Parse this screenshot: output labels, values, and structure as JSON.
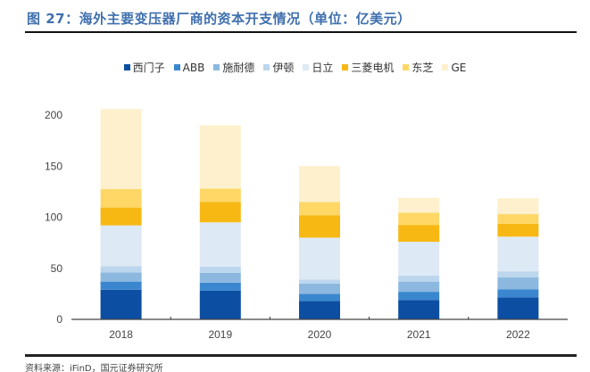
{
  "title": "图 27：海外主要变压器厂商的资本开支情况（单位：亿美元）",
  "source": "资料来源：iFinD，国元证券研究所",
  "chart_data": {
    "type": "bar",
    "stacked": true,
    "title": "海外主要变压器厂商的资本开支情况（单位：亿美元）",
    "xlabel": "",
    "ylabel": "",
    "ylim": [
      0,
      200
    ],
    "yticks": [
      "0",
      "50",
      "100",
      "150",
      "200"
    ],
    "ytick_values": [
      0,
      50,
      100,
      150,
      200
    ],
    "legend_position": "top",
    "categories": [
      "2018",
      "2019",
      "2020",
      "2021",
      "2022"
    ],
    "series": [
      {
        "name": "西门子",
        "color": "#0b4ea2",
        "values": [
          29,
          28,
          18,
          19,
          21.5
        ]
      },
      {
        "name": "ABB",
        "color": "#3a87cf",
        "values": [
          8,
          8,
          7,
          8,
          8
        ]
      },
      {
        "name": "施耐德",
        "color": "#8cb8e0",
        "values": [
          9,
          9.5,
          10,
          10,
          11.5
        ]
      },
      {
        "name": "伊顿",
        "color": "#bcd6ee",
        "values": [
          6,
          6,
          4,
          6,
          6
        ]
      },
      {
        "name": "日立",
        "color": "#ddeaf5",
        "values": [
          40,
          43.5,
          41,
          33,
          34
        ]
      },
      {
        "name": "三菱电机",
        "color": "#f8b814",
        "values": [
          17.5,
          20,
          22,
          16.5,
          12.5
        ]
      },
      {
        "name": "东芝",
        "color": "#fed766",
        "values": [
          18,
          13,
          13,
          12,
          9.5
        ]
      },
      {
        "name": "GE",
        "color": "#fef0cc",
        "values": [
          78.5,
          62,
          35,
          14.5,
          15.5
        ]
      }
    ]
  }
}
